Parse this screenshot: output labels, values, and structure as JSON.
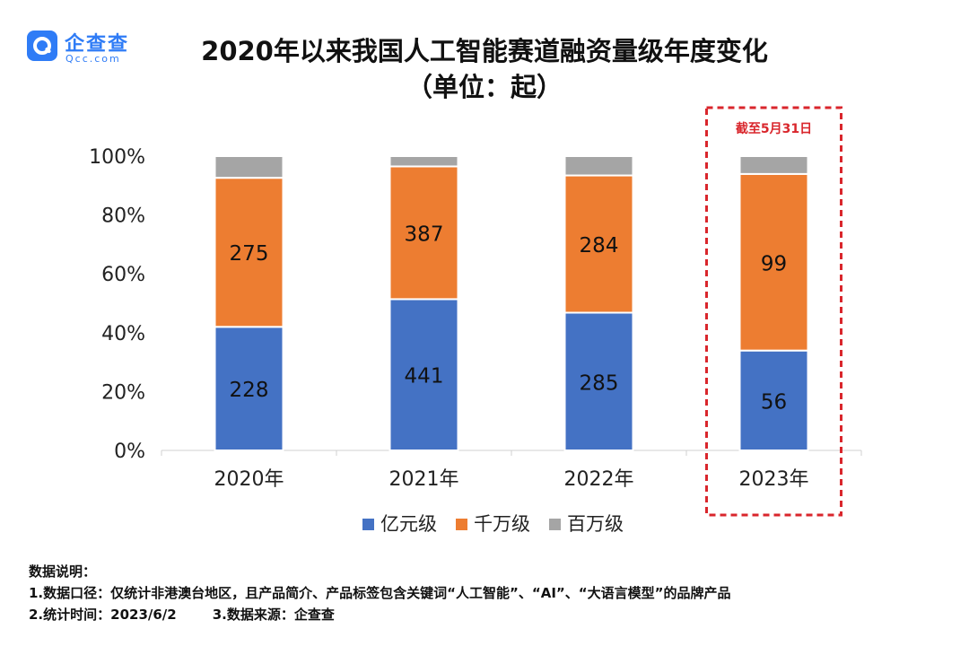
{
  "brand": {
    "name": "企查查",
    "domain": "Qcc.com",
    "color": "#2f7cf6"
  },
  "chart_data": {
    "type": "bar",
    "stacked": true,
    "normalized": true,
    "title": "2020年以来我国人工智能赛道融资量级年度变化",
    "subtitle": "（单位：起）",
    "categories": [
      "2020年",
      "2021年",
      "2022年",
      "2023年"
    ],
    "series": [
      {
        "name": "亿元级",
        "color": "#4472c4",
        "values": [
          228,
          441,
          285,
          56
        ]
      },
      {
        "name": "千万级",
        "color": "#ed7d31",
        "values": [
          275,
          387,
          284,
          99
        ]
      },
      {
        "name": "百万级",
        "color": "#a5a5a5",
        "values": [
          40,
          30,
          40,
          10
        ]
      }
    ],
    "y_ticks": [
      "0%",
      "20%",
      "40%",
      "60%",
      "80%",
      "100%"
    ],
    "ylim": [
      0,
      100
    ],
    "legend_position": "bottom",
    "grid": false,
    "highlight": {
      "category": "2023年",
      "label": "截至5月31日",
      "color": "#d9262c"
    }
  },
  "notes": {
    "heading": "数据说明：",
    "line1": "1.数据口径：仅统计非港澳台地区，且产品简介、产品标签包含关键词“人工智能”、“AI”、“大语言模型”的品牌产品",
    "line2a": "2.统计时间：2023/6/2",
    "line2b": "3.数据来源：企查查"
  }
}
